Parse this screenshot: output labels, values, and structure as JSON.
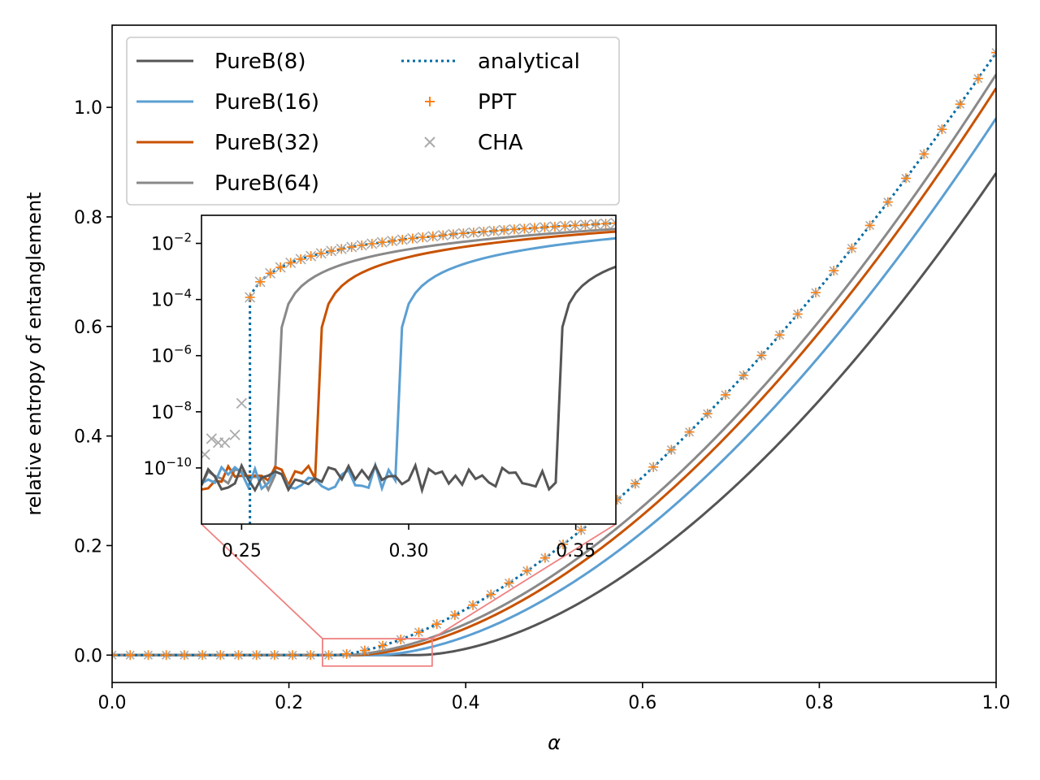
{
  "chart_data": [
    {
      "type": "line",
      "title": "",
      "xlabel": "α",
      "ylabel": "relative entropy of entanglement",
      "xlim": [
        0.0,
        1.0
      ],
      "ylim": [
        -0.05,
        1.15
      ],
      "x_ticks": [
        "0.0",
        "0.2",
        "0.4",
        "0.6",
        "0.8",
        "1.0"
      ],
      "y_ticks": [
        "0.0",
        "0.2",
        "0.4",
        "0.6",
        "0.8",
        "1.0"
      ],
      "grid": false,
      "legend_placement": "upper-left",
      "series": [
        {
          "name": "PureB(8)",
          "style": "solid",
          "color": "#555555",
          "onset": 0.345
        },
        {
          "name": "PureB(16)",
          "style": "solid",
          "color": "#5b9fd2",
          "onset": 0.297
        },
        {
          "name": "PureB(32)",
          "style": "solid",
          "color": "#c85200",
          "onset": 0.273
        },
        {
          "name": "PureB(64)",
          "style": "solid",
          "color": "#898989",
          "onset": 0.261
        },
        {
          "name": "analytical",
          "style": "dotted",
          "color": "#006ba4",
          "onset": 0.25
        },
        {
          "name": "PPT",
          "style": "marker-plus",
          "color": "#ff800e"
        },
        {
          "name": "CHA",
          "style": "marker-x",
          "color": "#ababab"
        }
      ],
      "sample_points": {
        "x": [
          0.4,
          0.5,
          0.6,
          0.7,
          0.8,
          0.9,
          1.0
        ],
        "PureB(8)": [
          0.0,
          0.018,
          0.095,
          0.22,
          0.39,
          0.6,
          0.88
        ],
        "PureB(16)": [
          0.014,
          0.055,
          0.15,
          0.29,
          0.47,
          0.7,
          0.98
        ],
        "PureB(32)": [
          0.025,
          0.073,
          0.175,
          0.325,
          0.51,
          0.745,
          1.035
        ],
        "PureB(64)": [
          0.032,
          0.083,
          0.19,
          0.34,
          0.53,
          0.77,
          1.06
        ],
        "analytical": [
          0.04,
          0.09,
          0.2,
          0.36,
          0.56,
          0.8,
          1.1
        ]
      }
    },
    {
      "type": "line",
      "title": "",
      "xlabel": "",
      "ylabel": "",
      "scale_y": "log",
      "xlim": [
        0.238,
        0.362
      ],
      "ylim": [
        1e-12,
        0.1
      ],
      "x_ticks": [
        "0.25",
        "0.30",
        "0.35"
      ],
      "y_ticks": [
        "10",
        "10",
        "10",
        "10",
        "10"
      ],
      "y_tick_exponents": [
        "−2",
        "−4",
        "−6",
        "−8",
        "−10"
      ],
      "noise_floor": 3e-11,
      "cha_noise_points": {
        "x": [
          0.239,
          0.241,
          0.243,
          0.245,
          0.248,
          0.25
        ],
        "y": [
          3e-10,
          1.1e-09,
          8e-10,
          8e-10,
          1.5e-09,
          2e-08
        ]
      },
      "plateau_value": 0.015
    }
  ],
  "zoom_box": {
    "x_range": [
      0.238,
      0.362
    ],
    "y_range": [
      -0.02,
      0.03
    ],
    "color": "#f08080"
  }
}
